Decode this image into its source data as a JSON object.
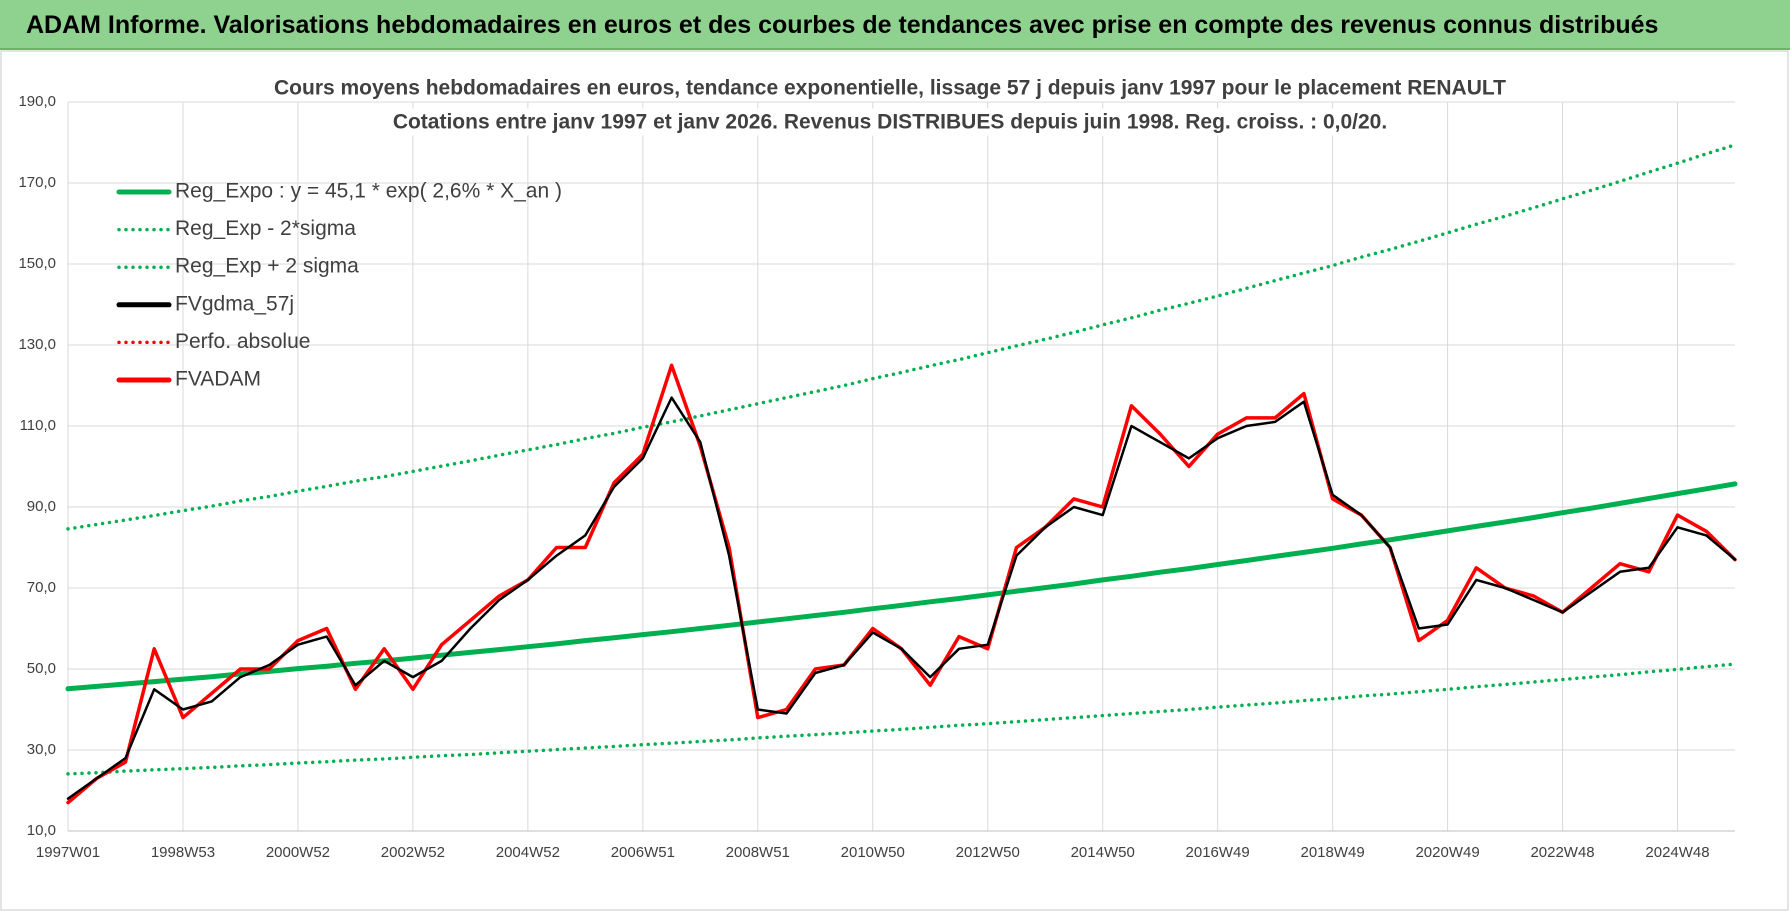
{
  "page_title": "ADAM Informe. Valorisations hebdomadaires en euros et des courbes de tendances avec prise en compte des revenus connus distribués",
  "chart_data": {
    "type": "line",
    "title": "Cours moyens hebdomadaires en euros, tendance exponentielle, lissage 57 j depuis janv 1997  pour le placement RENAULT",
    "subtitle": "Cotations entre janv 1997 et janv 2026. Revenus DISTRIBUES depuis juin 1998. Reg. croiss. : 0,0/20.",
    "categories": [
      "1997W01",
      null,
      null,
      null,
      "1998W53",
      null,
      null,
      null,
      "2000W52",
      null,
      null,
      null,
      "2002W52",
      null,
      null,
      null,
      "2004W52",
      null,
      null,
      null,
      "2006W51",
      null,
      null,
      null,
      "2008W51",
      null,
      null,
      null,
      "2010W50",
      null,
      null,
      null,
      "2012W50",
      null,
      null,
      null,
      "2014W50",
      null,
      null,
      null,
      "2016W49",
      null,
      null,
      null,
      "2018W49",
      null,
      null,
      null,
      "2020W49",
      null,
      null,
      null,
      "2022W48",
      null,
      null,
      null,
      "2024W48",
      null,
      null
    ],
    "ylim": [
      10,
      190
    ],
    "yticks": [
      {
        "value": 10,
        "label": "10,0"
      },
      {
        "value": 30,
        "label": "30,0"
      },
      {
        "value": 50,
        "label": "50,0"
      },
      {
        "value": 70,
        "label": "70,0"
      },
      {
        "value": 90,
        "label": "90,0"
      },
      {
        "value": 110,
        "label": "110,0"
      },
      {
        "value": 130,
        "label": "130,0"
      },
      {
        "value": 150,
        "label": "150,0"
      },
      {
        "value": 170,
        "label": "170,0"
      },
      {
        "value": 190,
        "label": "190,0"
      }
    ],
    "grid": true,
    "legend": "upper left",
    "series": [
      {
        "name": "Reg_Expo : y = 45,1 * exp( 2,6% *  X_an )",
        "color": "#00b050",
        "style": "solid",
        "values": [
          45.1,
          45.7,
          46.3,
          46.9,
          47.5,
          48.1,
          48.8,
          49.4,
          50.1,
          50.7,
          51.4,
          52.0,
          52.7,
          53.4,
          54.1,
          54.8,
          55.5,
          56.2,
          57.0,
          57.7,
          58.5,
          59.2,
          60.0,
          60.8,
          61.6,
          62.4,
          63.2,
          64.0,
          64.9,
          65.7,
          66.6,
          67.4,
          68.3,
          69.2,
          70.1,
          71.0,
          72.0,
          72.9,
          73.9,
          74.8,
          75.8,
          76.8,
          77.8,
          78.8,
          79.8,
          80.9,
          81.9,
          83.0,
          84.1,
          85.2,
          86.3,
          87.4,
          88.6,
          89.7,
          90.9,
          92.1,
          93.3,
          94.5,
          95.7
        ]
      },
      {
        "name": "Reg_Exp - 2*sigma",
        "color": "#00b050",
        "style": "dotted",
        "values": [
          24.1,
          24.4,
          24.8,
          25.1,
          25.4,
          25.7,
          26.1,
          26.4,
          26.8,
          27.1,
          27.5,
          27.8,
          28.2,
          28.6,
          28.9,
          29.3,
          29.7,
          30.1,
          30.5,
          30.9,
          31.3,
          31.7,
          32.1,
          32.5,
          33.0,
          33.4,
          33.8,
          34.2,
          34.7,
          35.1,
          35.6,
          36.1,
          36.5,
          37.0,
          37.5,
          38.0,
          38.5,
          39.0,
          39.5,
          40.0,
          40.6,
          41.1,
          41.6,
          42.2,
          42.7,
          43.3,
          43.8,
          44.4,
          45.0,
          45.6,
          46.2,
          46.8,
          47.4,
          48.0,
          48.6,
          49.3,
          49.9,
          50.6,
          51.2
        ]
      },
      {
        "name": "Reg_Exp + 2 sigma",
        "color": "#00b050",
        "style": "dotted",
        "values": [
          84.6,
          85.7,
          86.8,
          87.9,
          89.1,
          90.2,
          91.5,
          92.6,
          93.9,
          95.1,
          96.4,
          97.5,
          98.8,
          100.1,
          101.4,
          102.8,
          104.1,
          105.4,
          106.9,
          108.2,
          109.7,
          111.0,
          112.5,
          114.0,
          115.5,
          117.0,
          118.5,
          120.0,
          121.7,
          123.2,
          124.9,
          126.4,
          128.1,
          129.8,
          131.4,
          133.1,
          135.0,
          136.7,
          138.6,
          140.3,
          142.1,
          144.0,
          145.9,
          147.8,
          149.6,
          151.7,
          153.6,
          155.6,
          157.7,
          159.8,
          161.8,
          163.9,
          166.1,
          168.2,
          170.4,
          172.7,
          174.9,
          177.2,
          179.4
        ]
      },
      {
        "name": "FVgdma_57j",
        "color": "#000000",
        "style": "solid",
        "values": [
          18,
          23,
          28,
          45,
          40,
          42,
          48,
          51,
          56,
          58,
          46,
          52,
          48,
          52,
          60,
          67,
          72,
          78,
          83,
          95,
          102,
          117,
          106,
          78,
          40,
          39,
          49,
          51,
          59,
          55,
          48,
          55,
          56,
          78,
          85,
          90,
          88,
          110,
          106,
          102,
          107,
          110,
          111,
          116,
          93,
          88,
          80,
          60,
          61,
          72,
          70,
          67,
          64,
          69,
          74,
          75,
          85,
          83,
          77
        ]
      },
      {
        "name": "Perfo. absolue",
        "color": "#ff0000",
        "style": "dotted",
        "values": [
          17,
          23,
          27,
          55,
          38,
          44,
          50,
          50,
          57,
          60,
          45,
          55,
          45,
          56,
          62,
          68,
          72,
          80,
          80,
          96,
          103,
          125,
          105,
          80,
          38,
          40,
          50,
          51,
          60,
          55,
          46,
          58,
          55,
          80,
          85,
          92,
          90,
          115,
          108,
          100,
          108,
          112,
          112,
          118,
          92,
          88,
          80,
          57,
          62,
          75,
          70,
          68,
          64,
          70,
          76,
          74,
          88,
          84,
          77
        ]
      },
      {
        "name": "FVADAM",
        "color": "#ff0000",
        "style": "solid",
        "values": [
          17,
          23,
          27,
          55,
          38,
          44,
          50,
          50,
          57,
          60,
          45,
          55,
          45,
          56,
          62,
          68,
          72,
          80,
          80,
          96,
          103,
          125,
          105,
          80,
          38,
          40,
          50,
          51,
          60,
          55,
          46,
          58,
          55,
          80,
          85,
          92,
          90,
          115,
          108,
          100,
          108,
          112,
          112,
          118,
          92,
          88,
          80,
          57,
          62,
          75,
          70,
          68,
          64,
          70,
          76,
          74,
          88,
          84,
          77
        ]
      }
    ]
  }
}
